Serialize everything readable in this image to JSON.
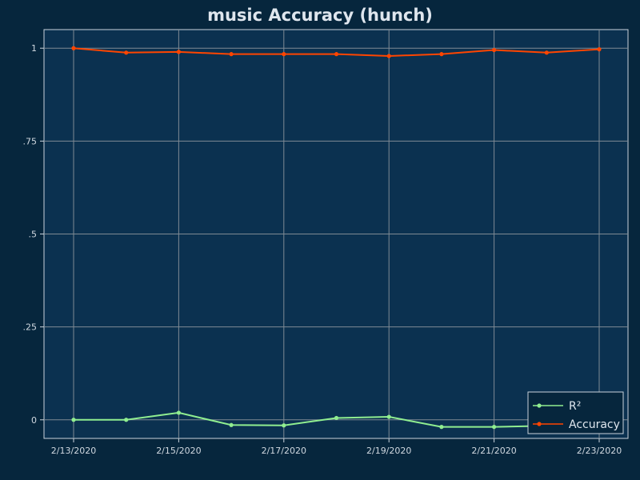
{
  "chart_data": {
    "type": "line",
    "title": "music Accuracy (hunch)",
    "xlabel": "",
    "ylabel": "",
    "x": [
      "2/13/2020",
      "2/14/2020",
      "2/15/2020",
      "2/16/2020",
      "2/17/2020",
      "2/18/2020",
      "2/19/2020",
      "2/20/2020",
      "2/21/2020",
      "2/22/2020",
      "2/23/2020"
    ],
    "x_tick_labels": [
      "2/13/2020",
      "2/15/2020",
      "2/17/2020",
      "2/19/2020",
      "2/21/2020",
      "2/23/2020"
    ],
    "y_tick_labels": [
      "0",
      ".25",
      ".5",
      ".75",
      "1"
    ],
    "y_ticks": [
      0,
      0.25,
      0.5,
      0.75,
      1
    ],
    "ylim": [
      -0.05,
      1.05
    ],
    "grid": true,
    "legend_position": "bottom-right",
    "series": [
      {
        "name": "R²",
        "color": "#90ee90",
        "values": [
          0.0,
          0.0,
          0.019,
          -0.014,
          -0.015,
          0.005,
          0.008,
          -0.019,
          -0.019,
          -0.016,
          -0.012
        ]
      },
      {
        "name": "Accuracy",
        "color": "#ff4500",
        "values": [
          1.0,
          0.988,
          0.99,
          0.984,
          0.984,
          0.984,
          0.979,
          0.984,
          0.995,
          0.988,
          0.997
        ]
      }
    ]
  }
}
